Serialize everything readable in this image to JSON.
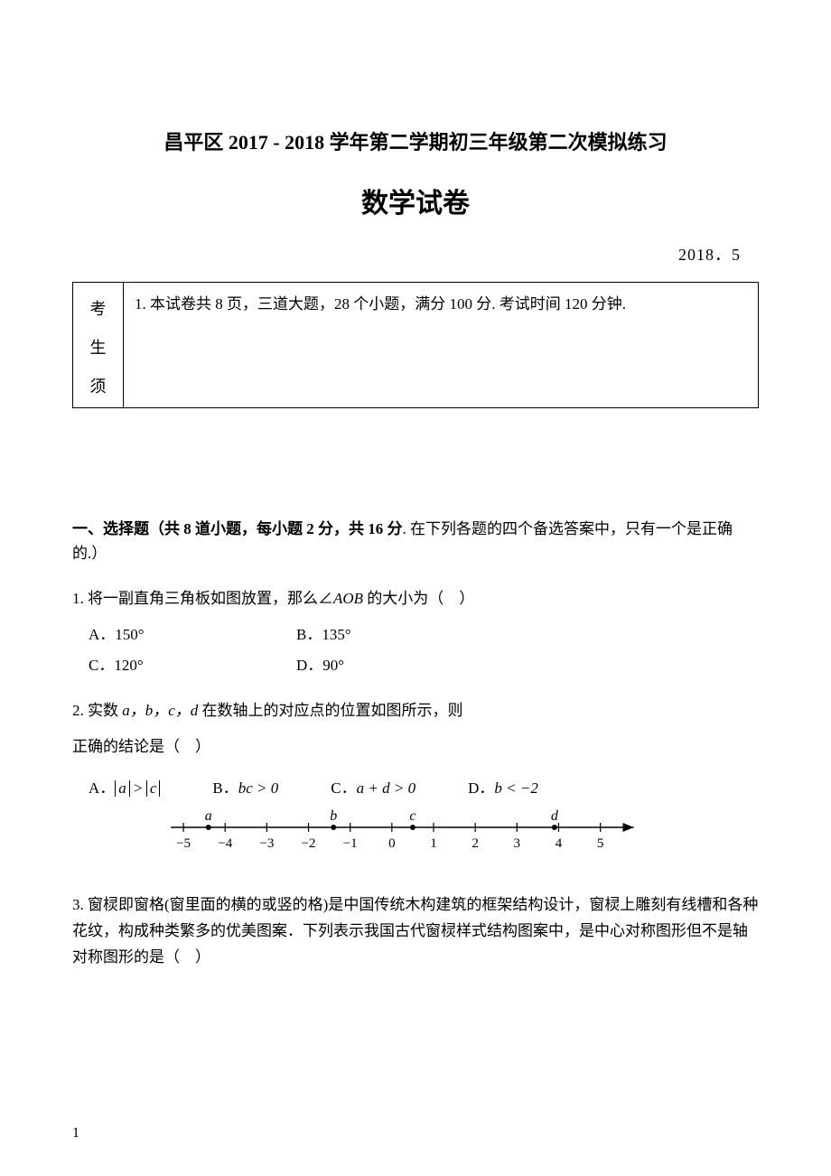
{
  "title_main": "昌平区 2017 - 2018 学年第二学期初三年级第二次模拟练习",
  "title_sub": "数学试卷",
  "date": "2018．5",
  "notice_left_chars": [
    "考",
    "生",
    "须"
  ],
  "notice_text": "1. 本试卷共 8 页，三道大题，28 个小题，满分 100 分. 考试时间 120 分钟.",
  "section1_bold": "一、选择题（共 8 道小题，每小题 2 分，共 16 分",
  "section1_rest": ". 在下列各题的四个备选答案中，只有一个是正确的.）",
  "q1": {
    "text_pre": "1. 将一副直角三角板如图放置，那么∠",
    "text_italic": "AOB",
    "text_post": " 的大小为（　）",
    "A": "A．150°",
    "B": "B．135°",
    "C": "C．120°",
    "D": "D．90°"
  },
  "q2": {
    "text_pre": "2. 实数 ",
    "vars": "a，b，c，d",
    "text_mid": " 在数轴上的对应点的位置如图所示，则",
    "text2": "正确的结论是（　）",
    "A_pre": "A．",
    "B_pre": "B．",
    "B_expr": "bc > 0",
    "C_pre": "C．",
    "C_expr": "a + d > 0",
    "D_pre": "D．",
    "D_expr": "b < −2",
    "numline": {
      "points": [
        {
          "label": "a",
          "pos": -4.4
        },
        {
          "label": "b",
          "pos": -1.4
        },
        {
          "label": "c",
          "pos": 0.5
        },
        {
          "label": "d",
          "pos": 3.9
        }
      ],
      "ticks": [
        -5,
        -4,
        -3,
        -2,
        -1,
        0,
        1,
        2,
        3,
        4,
        5
      ],
      "tick_labels": [
        "−5",
        "−4",
        "−3",
        "−2",
        "−1",
        "0",
        "1",
        "2",
        "3",
        "4",
        "5"
      ]
    }
  },
  "q3_text": "3. 窗棂即窗格(窗里面的横的或竖的格)是中国传统木构建筑的框架结构设计，窗棂上雕刻有线槽和各种花纹，构成种类繁多的优美图案．下列表示我国古代窗棂样式结构图案中，是中心对称图形但不是轴对称图形的是（　）",
  "page_num": "1",
  "colors": {
    "text": "#000000",
    "bg": "#ffffff",
    "border": "#000000"
  }
}
